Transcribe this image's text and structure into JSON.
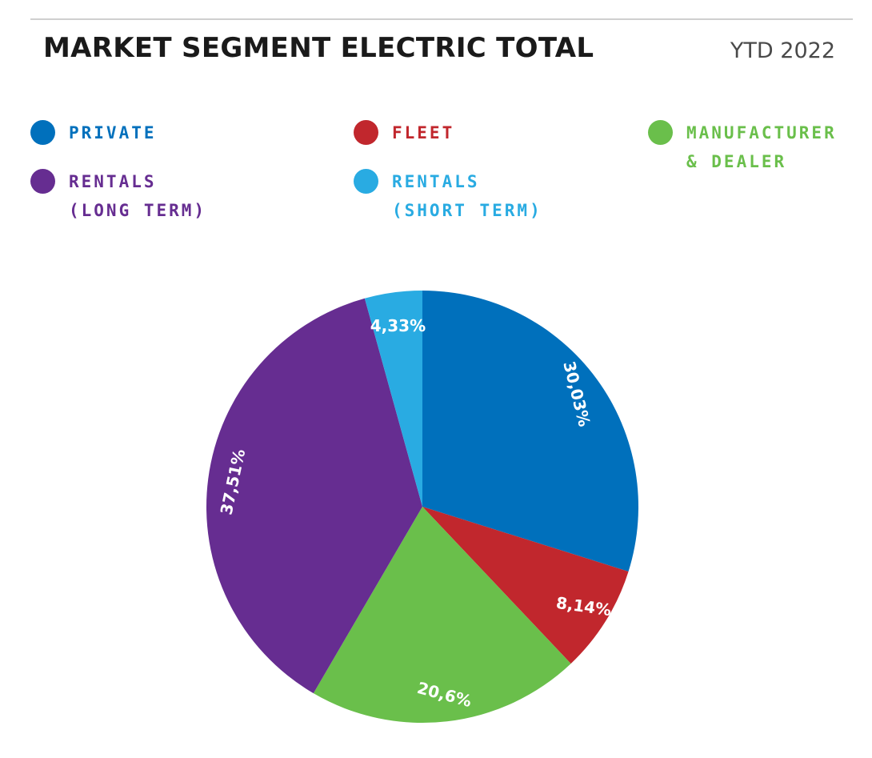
{
  "header": {
    "title": "MARKET SEGMENT ELECTRIC TOTAL",
    "period": "YTD 2022"
  },
  "chart_data": {
    "type": "pie",
    "title": "MARKET SEGMENT ELECTRIC TOTAL",
    "subtitle": "YTD 2022",
    "slices": [
      {
        "name": "PRIVATE",
        "label": "30,03%",
        "value": 30.03,
        "color": "#0070bc"
      },
      {
        "name": "FLEET",
        "label": "8,14%",
        "value": 8.14,
        "color": "#c1272d"
      },
      {
        "name": "MANUFACTURER & DEALER",
        "label": "20,6%",
        "value": 20.6,
        "color": "#6abf4b"
      },
      {
        "name": "RENTALS (LONG TERM)",
        "label": "37,51%",
        "value": 37.51,
        "color": "#662d91"
      },
      {
        "name": "RENTALS (SHORT TERM)",
        "label": "4,33%",
        "value": 4.33,
        "color": "#29abe2"
      }
    ],
    "legend": {
      "position": "top",
      "items": [
        {
          "label": "PRIVATE",
          "color": "#0070bc"
        },
        {
          "label": "FLEET",
          "color": "#c1272d"
        },
        {
          "label": "MANUFACTURER\n& DEALER",
          "color": "#6abf4b"
        },
        {
          "label": "RENTALS\n(LONG TERM)",
          "color": "#662d91"
        },
        {
          "label": "RENTALS\n(SHORT TERM)",
          "color": "#29abe2"
        }
      ]
    }
  }
}
